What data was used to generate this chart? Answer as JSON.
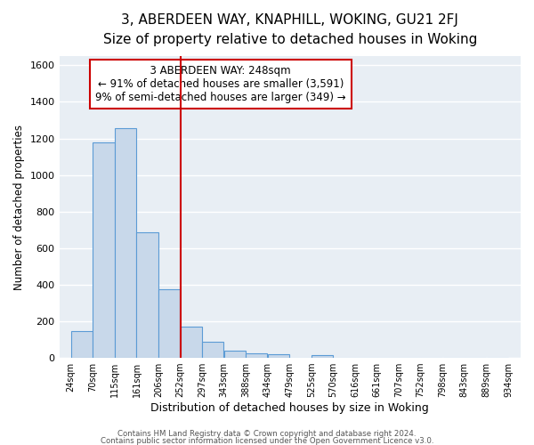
{
  "title": "3, ABERDEEN WAY, KNAPHILL, WOKING, GU21 2FJ",
  "subtitle": "Size of property relative to detached houses in Woking",
  "xlabel": "Distribution of detached houses by size in Woking",
  "ylabel": "Number of detached properties",
  "bar_left_edges": [
    24,
    70,
    115,
    161,
    206,
    252,
    297,
    343,
    388,
    434,
    479,
    525,
    570,
    616,
    661,
    707,
    752,
    798,
    843,
    889
  ],
  "bar_heights": [
    148,
    1180,
    1258,
    688,
    375,
    170,
    90,
    40,
    25,
    20,
    0,
    15,
    0,
    0,
    0,
    0,
    0,
    0,
    0,
    0
  ],
  "bin_width": 45,
  "bar_color": "#c8d8ea",
  "bar_edge_color": "#5b9bd5",
  "vline_x": 252,
  "vline_color": "#cc0000",
  "annotation_title": "3 ABERDEEN WAY: 248sqm",
  "annotation_line1": "← 91% of detached houses are smaller (3,591)",
  "annotation_line2": "9% of semi-detached houses are larger (349) →",
  "annotation_box_color": "#ffffff",
  "annotation_box_edge_color": "#cc0000",
  "ytick_labels": [
    "0",
    "200",
    "400",
    "600",
    "800",
    "1000",
    "1200",
    "1400",
    "1600"
  ],
  "ytick_values": [
    0,
    200,
    400,
    600,
    800,
    1000,
    1200,
    1400,
    1600
  ],
  "xtick_labels": [
    "24sqm",
    "70sqm",
    "115sqm",
    "161sqm",
    "206sqm",
    "252sqm",
    "297sqm",
    "343sqm",
    "388sqm",
    "434sqm",
    "479sqm",
    "525sqm",
    "570sqm",
    "616sqm",
    "661sqm",
    "707sqm",
    "752sqm",
    "798sqm",
    "843sqm",
    "889sqm",
    "934sqm"
  ],
  "xtick_positions": [
    24,
    70,
    115,
    161,
    206,
    252,
    297,
    343,
    388,
    434,
    479,
    525,
    570,
    616,
    661,
    707,
    752,
    798,
    843,
    889,
    934
  ],
  "ylim": [
    0,
    1650
  ],
  "xlim": [
    0,
    960
  ],
  "footer1": "Contains HM Land Registry data © Crown copyright and database right 2024.",
  "footer2": "Contains public sector information licensed under the Open Government Licence v3.0.",
  "fig_bg_color": "#ffffff",
  "plot_bg_color": "#e8eef4",
  "grid_color": "#ffffff",
  "title_fontsize": 11,
  "subtitle_fontsize": 9.5,
  "annotation_fontsize": 8.5
}
